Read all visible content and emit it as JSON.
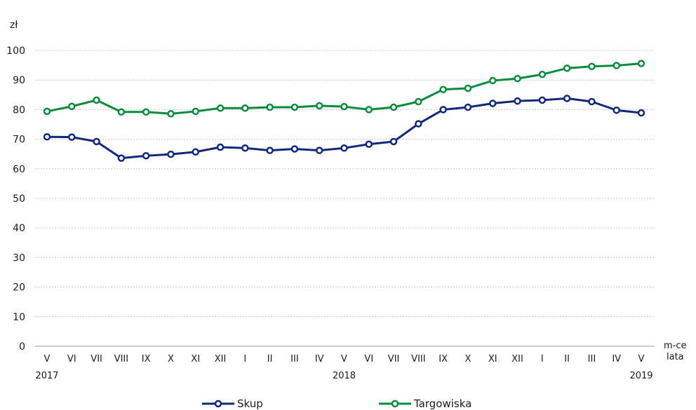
{
  "chart_data": {
    "type": "line",
    "ylabel": "zł",
    "xlabel": [
      "m-ce",
      "lata"
    ],
    "ylim": [
      0,
      100
    ],
    "yticks": [
      0,
      10,
      20,
      30,
      40,
      50,
      60,
      70,
      80,
      90,
      100
    ],
    "grid": true,
    "legend_position": "bottom",
    "categories": [
      "V",
      "VI",
      "VII",
      "VIII",
      "IX",
      "X",
      "XI",
      "XII",
      "I",
      "II",
      "III",
      "IV",
      "V",
      "VI",
      "VII",
      "VIII",
      "IX",
      "X",
      "XI",
      "XII",
      "I",
      "II",
      "III",
      "IV",
      "V"
    ],
    "year_labels": [
      {
        "index": 0,
        "label": "2017"
      },
      {
        "index": 12,
        "label": "2018"
      },
      {
        "index": 24,
        "label": "2019"
      }
    ],
    "series": [
      {
        "name": "Skup",
        "color": "#13287a",
        "values": [
          70.8,
          70.7,
          69.2,
          63.6,
          64.4,
          64.9,
          65.7,
          67.3,
          67.0,
          66.2,
          66.7,
          66.2,
          67.0,
          68.3,
          69.2,
          75.2,
          80.0,
          80.8,
          82.1,
          82.9,
          83.2,
          83.8,
          82.7,
          79.8,
          78.9
        ]
      },
      {
        "name": "Targowiska",
        "color": "#0b8a3e",
        "values": [
          79.4,
          81.1,
          83.2,
          79.2,
          79.2,
          78.6,
          79.4,
          80.5,
          80.5,
          80.8,
          80.8,
          81.3,
          81.0,
          80.0,
          80.8,
          82.7,
          86.8,
          87.2,
          89.8,
          90.5,
          91.9,
          94.0,
          94.6,
          94.9,
          95.6
        ]
      }
    ]
  }
}
